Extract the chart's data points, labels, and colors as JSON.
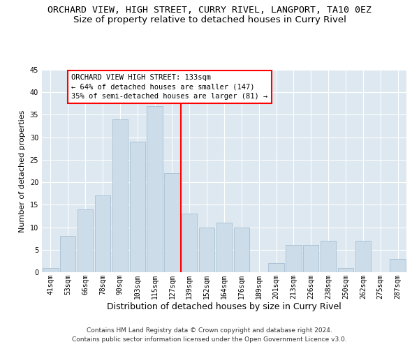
{
  "title": "ORCHARD VIEW, HIGH STREET, CURRY RIVEL, LANGPORT, TA10 0EZ",
  "subtitle": "Size of property relative to detached houses in Curry Rivel",
  "xlabel": "Distribution of detached houses by size in Curry Rivel",
  "ylabel": "Number of detached properties",
  "bar_labels": [
    "41sqm",
    "53sqm",
    "66sqm",
    "78sqm",
    "90sqm",
    "103sqm",
    "115sqm",
    "127sqm",
    "139sqm",
    "152sqm",
    "164sqm",
    "176sqm",
    "189sqm",
    "201sqm",
    "213sqm",
    "226sqm",
    "238sqm",
    "250sqm",
    "262sqm",
    "275sqm",
    "287sqm"
  ],
  "bar_values": [
    1,
    8,
    14,
    17,
    34,
    29,
    37,
    22,
    13,
    10,
    11,
    10,
    0,
    2,
    6,
    6,
    7,
    1,
    7,
    0,
    3
  ],
  "bar_color": "#ccdce8",
  "bar_edgecolor": "#a8c0d4",
  "vline_color": "red",
  "annotation_text": "ORCHARD VIEW HIGH STREET: 133sqm\n← 64% of detached houses are smaller (147)\n35% of semi-detached houses are larger (81) →",
  "annotation_box_edgecolor": "red",
  "ylim": [
    0,
    45
  ],
  "yticks": [
    0,
    5,
    10,
    15,
    20,
    25,
    30,
    35,
    40,
    45
  ],
  "plot_background": "#dde8f0",
  "footer_line1": "Contains HM Land Registry data © Crown copyright and database right 2024.",
  "footer_line2": "Contains public sector information licensed under the Open Government Licence v3.0.",
  "title_fontsize": 9.5,
  "subtitle_fontsize": 9.5,
  "xlabel_fontsize": 9,
  "ylabel_fontsize": 8,
  "tick_fontsize": 7,
  "annotation_fontsize": 7.5,
  "footer_fontsize": 6.5
}
